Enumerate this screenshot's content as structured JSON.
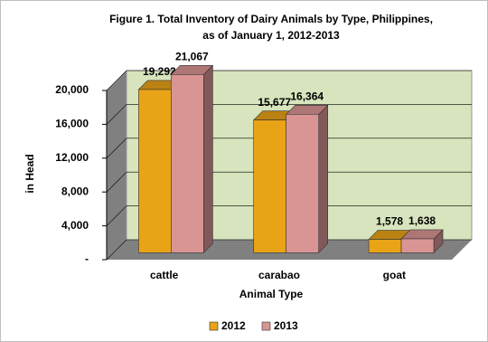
{
  "chart_data": {
    "type": "bar3d",
    "title": [
      "Figure 1.  Total Inventory of Dairy Animals by Type, Philippines,",
      "as of January 1, 2012-2013"
    ],
    "x_label": "Animal Type",
    "y_label": "in Head",
    "categories": [
      "cattle",
      "carabao",
      "goat"
    ],
    "series": [
      {
        "name": "2012",
        "color": "#e8a317",
        "values": [
          19292,
          15677,
          1578
        ],
        "value_labels": [
          "19,292",
          "15,677",
          "1,578"
        ]
      },
      {
        "name": "2013",
        "color": "#d99594",
        "values": [
          21067,
          16364,
          1638
        ],
        "value_labels": [
          "21,067",
          "16,364",
          "1,638"
        ]
      }
    ],
    "ylim": [
      0,
      20000
    ],
    "yticks": [
      {
        "value": 0,
        "label": "-"
      },
      {
        "value": 4000,
        "label": "4,000"
      },
      {
        "value": 8000,
        "label": "8,000"
      },
      {
        "value": 12000,
        "label": "12,000"
      },
      {
        "value": 16000,
        "label": "16,000"
      },
      {
        "value": 20000,
        "label": "20,000"
      }
    ],
    "grid": true,
    "legend": "bottom"
  }
}
